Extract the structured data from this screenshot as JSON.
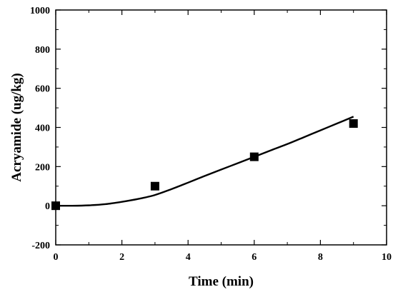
{
  "chart_data": {
    "type": "scatter",
    "title": "",
    "xlabel": "Time (min)",
    "ylabel": "Acryamide (ug/kg)",
    "xlim": [
      0,
      10
    ],
    "ylim": [
      -200,
      1000
    ],
    "xticks": [
      0,
      2,
      4,
      6,
      8,
      10
    ],
    "yticks": [
      -200,
      0,
      200,
      400,
      600,
      800,
      1000
    ],
    "x_tick_labels": [
      "0",
      "2",
      "4",
      "6",
      "8",
      "10"
    ],
    "y_tick_labels": [
      "-200",
      "0",
      "200",
      "400",
      "600",
      "800",
      "1000"
    ],
    "grid": false,
    "legend": "none",
    "series": [
      {
        "kind": "points",
        "marker": "square",
        "color": "#000000",
        "x": [
          0,
          3,
          6,
          9
        ],
        "y": [
          0,
          100,
          250,
          420
        ]
      },
      {
        "kind": "fit-curve",
        "color": "#000000",
        "x": [
          0,
          0.5,
          1,
          1.5,
          2,
          2.5,
          3,
          3.5,
          4,
          4.5,
          5,
          5.5,
          6,
          6.5,
          7,
          7.5,
          8,
          8.5,
          9
        ],
        "y": [
          0,
          0,
          2,
          8,
          20,
          35,
          55,
          85,
          118,
          152,
          185,
          217,
          250,
          283,
          315,
          350,
          385,
          420,
          455
        ]
      }
    ]
  }
}
